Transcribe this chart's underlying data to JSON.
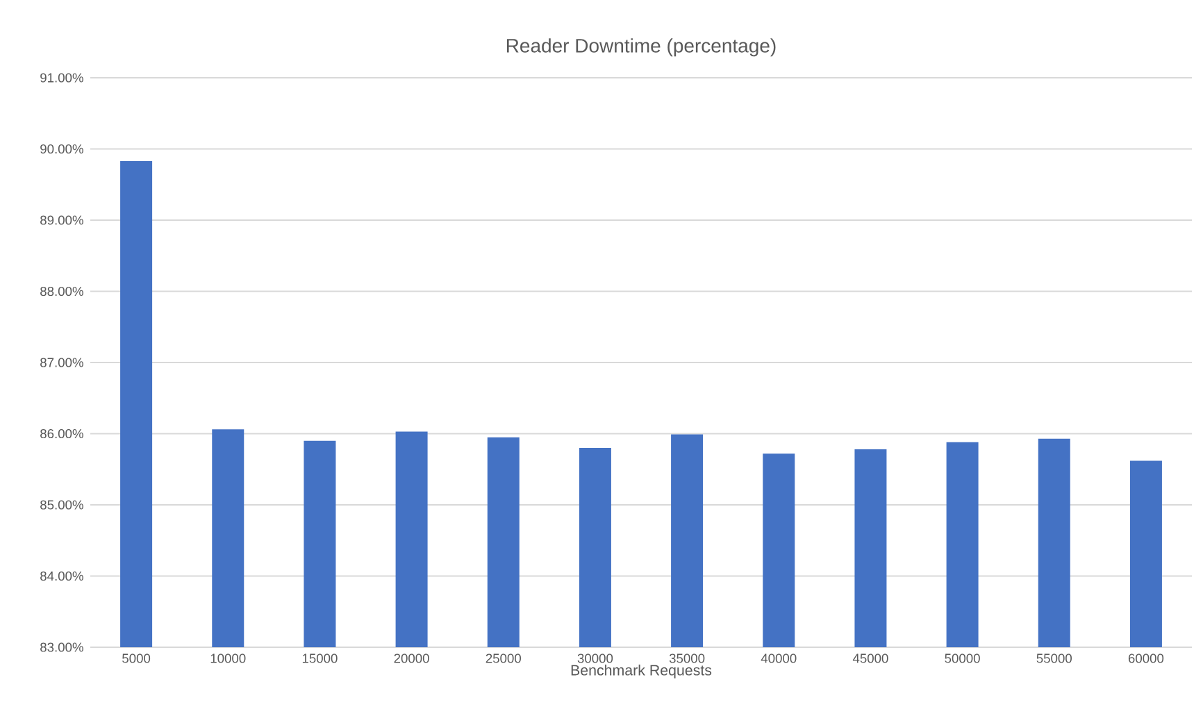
{
  "chart_data": {
    "type": "bar",
    "title": "Reader Downtime (percentage)",
    "xlabel": "Benchmark Requests",
    "categories": [
      "5000",
      "10000",
      "15000",
      "20000",
      "25000",
      "30000",
      "35000",
      "40000",
      "45000",
      "50000",
      "55000",
      "60000"
    ],
    "values": [
      89.83,
      86.06,
      85.9,
      86.03,
      85.95,
      85.8,
      85.99,
      85.72,
      85.78,
      85.88,
      85.93,
      85.62
    ],
    "color": "#4472c4",
    "ylim": [
      83,
      91
    ],
    "yticks": [
      {
        "value": 83,
        "label": "83.00%"
      },
      {
        "value": 84,
        "label": "84.00%"
      },
      {
        "value": 85,
        "label": "85.00%"
      },
      {
        "value": 86,
        "label": "86.00%"
      },
      {
        "value": 87,
        "label": "87.00%"
      },
      {
        "value": 88,
        "label": "88.00%"
      },
      {
        "value": 89,
        "label": "89.00%"
      },
      {
        "value": 90,
        "label": "90.00%"
      },
      {
        "value": 91,
        "label": "91.00%"
      }
    ],
    "grid": "y"
  }
}
